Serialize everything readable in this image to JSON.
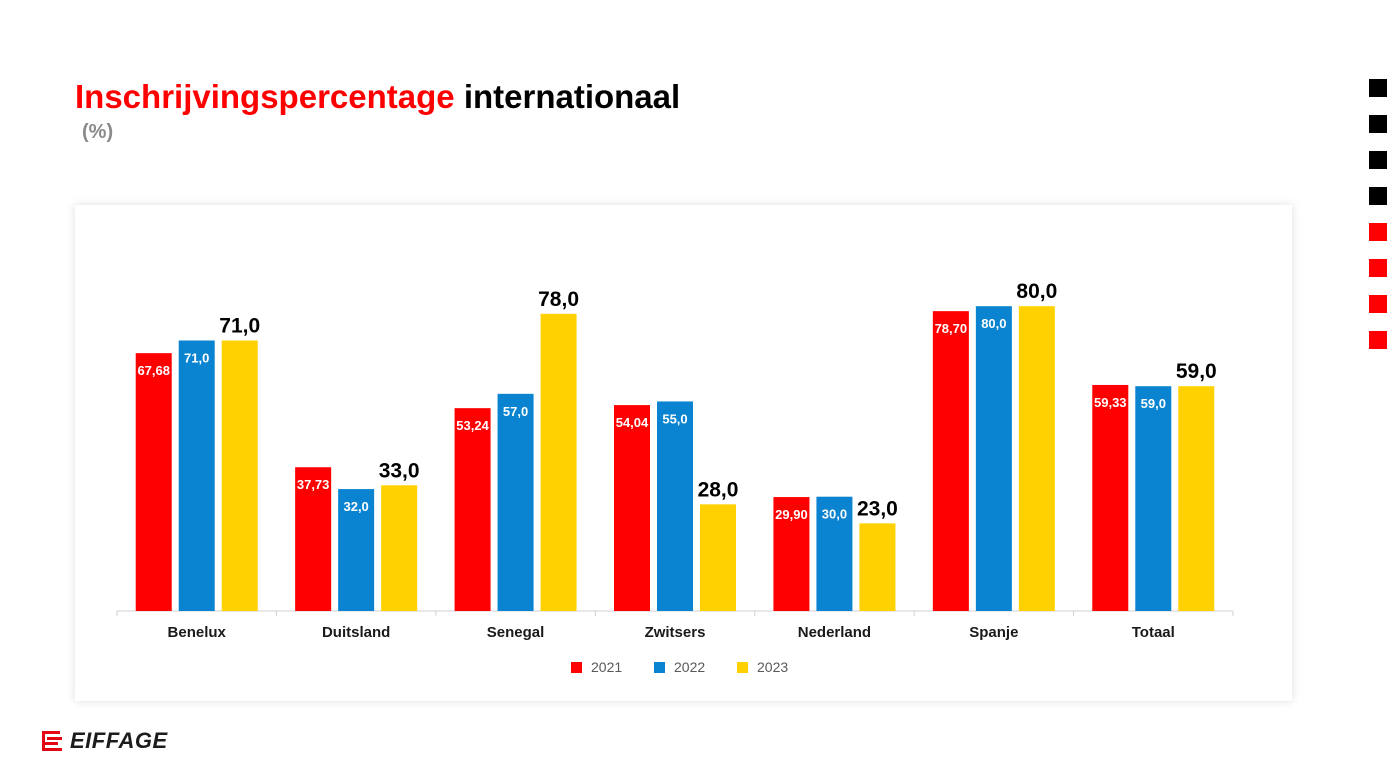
{
  "slide": {
    "title_part1": "Inschrijvingspercentage",
    "title_part2": "internationaal",
    "subtitle": "(%)",
    "logo_text": "EIFFAGE",
    "title_color": "#ff0000"
  },
  "side_markers": [
    {
      "color": "#000000"
    },
    {
      "color": "#000000"
    },
    {
      "color": "#000000"
    },
    {
      "color": "#000000"
    },
    {
      "color": "#ff0000"
    },
    {
      "color": "#ff0000"
    },
    {
      "color": "#ff0000"
    },
    {
      "color": "#ff0000"
    }
  ],
  "chart_data": {
    "type": "bar",
    "title": "",
    "xlabel": "",
    "ylabel": "",
    "ylim": [
      0,
      80
    ],
    "grid": false,
    "legend_position": "bottom",
    "categories": [
      "Benelux",
      "Duitsland",
      "Senegal",
      "Zwitsers",
      "Nederland",
      "Spanje",
      "Totaal"
    ],
    "series": [
      {
        "name": "2021",
        "color": "#ff0000",
        "values": [
          67.68,
          37.73,
          53.24,
          54.04,
          29.9,
          78.7,
          59.33
        ],
        "labels": [
          "67,68",
          "37,73",
          "53,24",
          "54,04",
          "29,90",
          "78,70",
          "59,33"
        ]
      },
      {
        "name": "2022",
        "color": "#0a84d0",
        "values": [
          71.0,
          32.0,
          57.0,
          55.0,
          30.0,
          80.0,
          59.0
        ],
        "labels": [
          "71,0",
          "32,0",
          "57,0",
          "55,0",
          "30,0",
          "80,0",
          "59,0"
        ]
      },
      {
        "name": "2023",
        "color": "#ffd100",
        "values": [
          71.0,
          33.0,
          78.0,
          28.0,
          23.0,
          80.0,
          59.0
        ],
        "labels": [
          "71,0",
          "33,0",
          "78,0",
          "28,0",
          "23,0",
          "80,0",
          "59,0"
        ]
      }
    ]
  }
}
